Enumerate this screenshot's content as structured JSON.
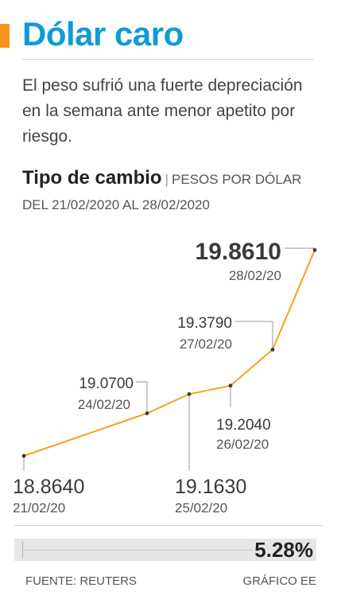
{
  "header": {
    "title": "Dólar caro",
    "subtitle": "El peso sufrió una fuerte depreciación en la semana ante menor apetito por riesgo."
  },
  "chart_header": {
    "title": "Tipo de cambio",
    "separator": "|",
    "units": "PESOS POR DÓLAR DEL 21/02/2020 AL 28/02/2020"
  },
  "colors": {
    "title": "#0f9bd7",
    "accent": "#f7941d",
    "line": "#f7a21b"
  },
  "chart_data": {
    "type": "line",
    "title": "Tipo de cambio",
    "x": [
      "21/02/20",
      "24/02/20",
      "25/02/20",
      "26/02/20",
      "27/02/20",
      "28/02/20"
    ],
    "series": [
      {
        "values": [
          18.864,
          19.07,
          19.163,
          19.204,
          19.379,
          19.861
        ],
        "labels": [
          "18.8640",
          "19.0700",
          "19.1630",
          "19.2040",
          "19.3790",
          "19.8610"
        ]
      }
    ],
    "ylim": [
      18.86,
      19.87
    ],
    "grid": false,
    "legend": "none"
  },
  "summary": {
    "change": "5.28%"
  },
  "footer": {
    "source": "FUENTE: REUTERS",
    "credit": "GRÁFICO EE"
  }
}
